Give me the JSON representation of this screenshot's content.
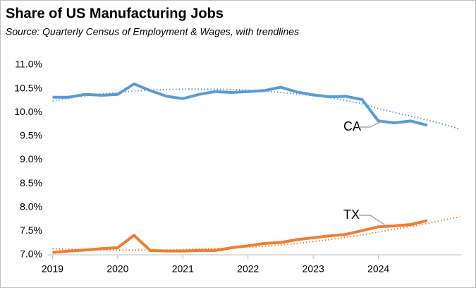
{
  "chart_data": {
    "type": "line",
    "title": "Share of US Manufacturing Jobs",
    "subtitle": "Source:  Quarterly Census of Employment & Wages, with trendlines",
    "x": [
      2019,
      2019.25,
      2019.5,
      2019.75,
      2020,
      2020.25,
      2020.5,
      2020.75,
      2021,
      2021.25,
      2021.5,
      2021.75,
      2022,
      2022.25,
      2022.5,
      2022.75,
      2023,
      2023.25,
      2023.5,
      2023.75,
      2024,
      2024.25,
      2024.5,
      2024.75,
      2025,
      2025.25
    ],
    "series": [
      {
        "name": "CA",
        "color": "#5b9bd5",
        "values": [
          10.32,
          10.32,
          10.38,
          10.36,
          10.38,
          10.6,
          10.46,
          10.34,
          10.29,
          10.38,
          10.44,
          10.42,
          10.44,
          10.46,
          10.53,
          10.43,
          10.37,
          10.33,
          10.34,
          10.27,
          9.82,
          9.78,
          9.82,
          9.73,
          null,
          null
        ],
        "trend": [
          10.24,
          10.3,
          10.35,
          10.39,
          10.42,
          10.45,
          10.47,
          10.48,
          10.49,
          10.49,
          10.49,
          10.48,
          10.47,
          10.45,
          10.42,
          10.39,
          10.35,
          10.31,
          10.25,
          10.18,
          10.08,
          10.0,
          9.92,
          9.84,
          9.75,
          9.65
        ]
      },
      {
        "name": "TX",
        "color": "#ed7d31",
        "values": [
          7.05,
          7.08,
          7.1,
          7.13,
          7.15,
          7.41,
          7.09,
          7.08,
          7.08,
          7.09,
          7.09,
          7.15,
          7.19,
          7.24,
          7.26,
          7.32,
          7.36,
          7.4,
          7.43,
          7.51,
          7.59,
          7.61,
          7.64,
          7.72,
          null,
          null
        ],
        "trend": [
          7.13,
          7.12,
          7.11,
          7.1,
          7.1,
          7.1,
          7.1,
          7.1,
          7.11,
          7.12,
          7.13,
          7.14,
          7.16,
          7.18,
          7.21,
          7.24,
          7.28,
          7.32,
          7.37,
          7.42,
          7.48,
          7.54,
          7.6,
          7.66,
          7.73,
          7.8
        ]
      }
    ],
    "xlim": [
      2018.93,
      2025.27
    ],
    "xticks": [
      2019,
      2020,
      2021,
      2022,
      2023,
      2024
    ],
    "ylim": [
      7.0,
      11.0
    ],
    "yticks": [
      {
        "value": 7.0,
        "label": "7.0%"
      },
      {
        "value": 7.5,
        "label": "7.5%"
      },
      {
        "value": 8.0,
        "label": "8.0%"
      },
      {
        "value": 8.5,
        "label": "8.5%"
      },
      {
        "value": 9.0,
        "label": "9.0%"
      },
      {
        "value": 9.5,
        "label": "9.5%"
      },
      {
        "value": 10.0,
        "label": "10.0%"
      },
      {
        "value": 10.5,
        "label": "10.5%"
      },
      {
        "value": 11.0,
        "label": "11.0%"
      }
    ],
    "grid": false
  }
}
